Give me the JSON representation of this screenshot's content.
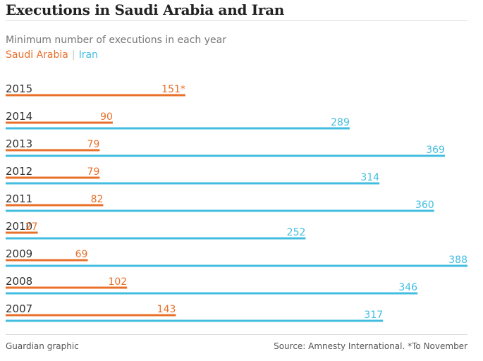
{
  "header": {
    "title": "Executions in Saudi Arabia and Iran"
  },
  "subtitle": "Minimum number of executions in each year",
  "legend": {
    "saudi_label": "Saudi Arabia",
    "separator": "|",
    "iran_label": "Iran"
  },
  "colors": {
    "saudi": "#e8702a",
    "iran": "#42bde0",
    "year_text": "#333333",
    "grid": "#dcdcdc"
  },
  "chart_data": {
    "type": "bar",
    "orientation": "horizontal",
    "title": "Executions in Saudi Arabia and Iran",
    "subtitle": "Minimum number of executions in each year",
    "categories": [
      "2015",
      "2014",
      "2013",
      "2012",
      "2011",
      "2010",
      "2009",
      "2008",
      "2007"
    ],
    "series": [
      {
        "name": "Saudi Arabia",
        "values": [
          151,
          90,
          79,
          79,
          82,
          27,
          69,
          102,
          143
        ],
        "labels": [
          "151*",
          "90",
          "79",
          "79",
          "82",
          "27",
          "69",
          "102",
          "143"
        ]
      },
      {
        "name": "Iran",
        "values": [
          null,
          289,
          369,
          314,
          360,
          252,
          388,
          346,
          317
        ],
        "labels": [
          "",
          "289",
          "369",
          "314",
          "360",
          "252",
          "388",
          "346",
          "317"
        ]
      }
    ],
    "xlim": [
      0,
      388
    ],
    "grid": false,
    "legend_position": "top-left"
  },
  "footer": {
    "credit": "Guardian graphic",
    "source": "Source: Amnesty International. *To November"
  }
}
